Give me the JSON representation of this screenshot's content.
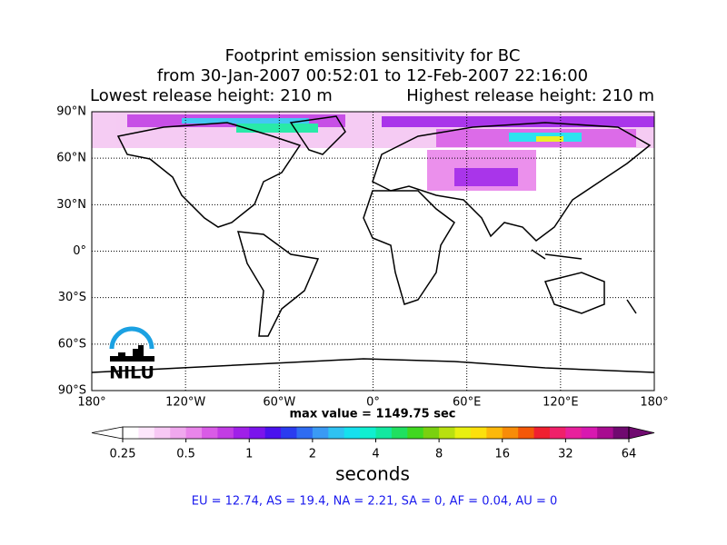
{
  "title": [
    "Footprint emission sensitivity for BC",
    "from 30-Jan-2007 00:52:01 to 12-Feb-2007 22:16:00"
  ],
  "release_heights": {
    "lowest": "Lowest release height: 210 m",
    "highest": "Highest release height: 210 m"
  },
  "map": {
    "lonlim": [
      -180,
      180
    ],
    "latlim": [
      -90,
      90
    ],
    "grid": true,
    "lat_ticks": [
      {
        "value": 90,
        "label": "90°N"
      },
      {
        "value": 60,
        "label": "60°N"
      },
      {
        "value": 30,
        "label": "30°N"
      },
      {
        "value": 0,
        "label": "0°"
      },
      {
        "value": -30,
        "label": "30°S"
      },
      {
        "value": -60,
        "label": "60°S"
      },
      {
        "value": -90,
        "label": "90°S"
      }
    ],
    "lon_ticks": [
      {
        "value": -180,
        "label": "180°"
      },
      {
        "value": -120,
        "label": "120°W"
      },
      {
        "value": -60,
        "label": "60°W"
      },
      {
        "value": 0,
        "label": "0°"
      },
      {
        "value": 60,
        "label": "60°E"
      },
      {
        "value": 120,
        "label": "120°E"
      },
      {
        "value": 180,
        "label": "180°"
      }
    ],
    "logo": "NILU"
  },
  "max_value_label": "max value = 1149.75 sec",
  "colorbar": {
    "scale": "log",
    "lim": [
      0.25,
      64
    ],
    "ticks": [
      0.25,
      0.5,
      1,
      2,
      4,
      8,
      16,
      32,
      64
    ],
    "label": "seconds",
    "colors": [
      "#ffffff",
      "#fde6fb",
      "#f7c8f4",
      "#f0a8ee",
      "#e985ea",
      "#d95be6",
      "#c23ce4",
      "#a020e8",
      "#7b14ec",
      "#4a12ee",
      "#2a3cf0",
      "#2f6cf2",
      "#3a9af4",
      "#2fc2f2",
      "#16e0ee",
      "#10efd0",
      "#12e8a0",
      "#20e060",
      "#40d820",
      "#7ad010",
      "#b8e010",
      "#e8f010",
      "#fce00c",
      "#fcb80a",
      "#f88c08",
      "#f45808",
      "#f02030",
      "#f0206a",
      "#e8209c",
      "#d818b0",
      "#a80c90",
      "#700a70"
    ]
  },
  "footer": "EU = 12.74,  AS = 19.4,  NA = 2.21,  SA = 0,  AF = 0.04,  AU = 0"
}
